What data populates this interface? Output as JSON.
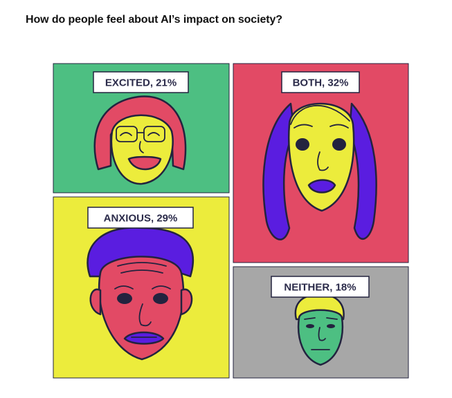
{
  "title": "How do people feel about AI’s impact on society?",
  "colors": {
    "excited": "#4dbf82",
    "both": "#e24a65",
    "anxious": "#ecec3c",
    "neither": "#a7a7a7",
    "purple": "#5a1de0",
    "ink": "#23233f"
  },
  "chart_data": {
    "type": "table",
    "categories": [
      "EXCITED",
      "BOTH",
      "ANXIOUS",
      "NEITHER"
    ],
    "values": [
      21,
      32,
      29,
      18
    ],
    "unit": "%",
    "labels": [
      "EXCITED, 21%",
      "BOTH, 32%",
      "ANXIOUS, 29%",
      "NEITHER, 18%"
    ],
    "icons": [
      "excited-face-icon",
      "both-face-icon",
      "anxious-face-icon",
      "neither-face-icon"
    ]
  }
}
